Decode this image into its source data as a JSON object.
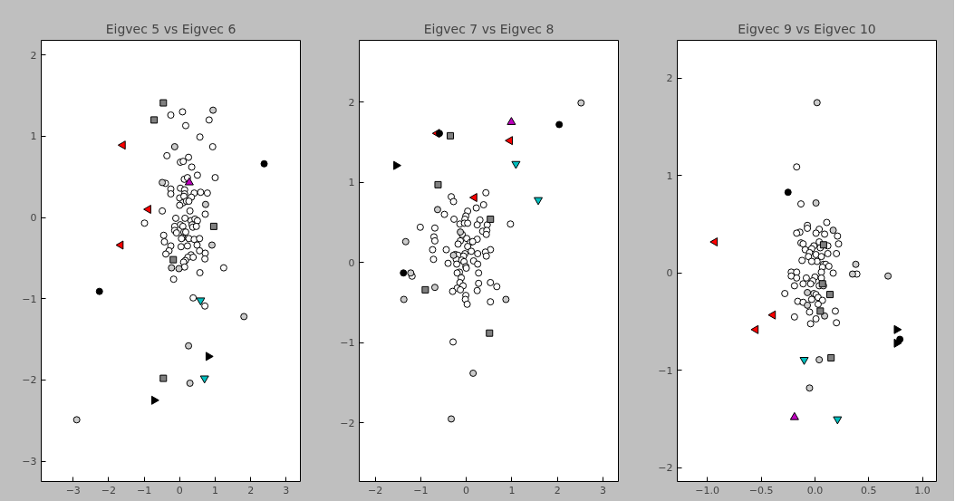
{
  "chart_data": [
    {
      "type": "scatter",
      "title": "Eigvec 5 vs Eigvec 6",
      "xlim": [
        -3.9,
        3.4
      ],
      "ylim": [
        -3.25,
        2.18
      ],
      "xticks": [
        {
          "value": -3,
          "label": "−3"
        },
        {
          "value": -2,
          "label": "−2"
        },
        {
          "value": -1,
          "label": "−1"
        },
        0,
        1,
        2,
        3
      ],
      "yticks": [
        {
          "value": -3,
          "label": "−3"
        },
        {
          "value": -2,
          "label": "−2"
        },
        {
          "value": -1,
          "label": "−1"
        },
        0,
        1,
        2
      ],
      "series": [
        {
          "color": "#ffffff",
          "marker": "circle",
          "x": [
            -0.25,
            0.08,
            0.83,
            0.17,
            0.57,
            0.93,
            -0.36,
            0.25,
            0.02,
            0.1,
            0.34,
            0.5,
            1.0,
            0.13,
            0.22,
            -0.4,
            -0.25,
            0.02,
            0.14,
            -0.25,
            0.14,
            0.41,
            0.59,
            0.78,
            0.0,
            0.12,
            0.33,
            0.09,
            0.19,
            0.26,
            0.0,
            -0.49,
            0.29,
            0.72,
            -0.99,
            -0.11,
            0.15,
            0.32,
            0.43,
            0.5,
            0.02,
            -0.14,
            0.09,
            0.35,
            0.37,
            0.47,
            -0.14,
            -0.09,
            0.12,
            0.17,
            -0.45,
            0.08,
            0.05,
            0.26,
            0.41,
            0.56,
            -0.43,
            -0.25,
            0.04,
            0.22,
            0.49,
            0.72,
            0.56,
            -0.3,
            -0.39,
            0.32,
            0.23,
            0.38,
            0.71,
            0.16,
            0.11,
            1.24,
            0.14,
            0.57,
            -0.17,
            0.38,
            0.71
          ],
          "values": [
            1.26,
            1.3,
            1.2,
            1.13,
            0.99,
            0.87,
            0.76,
            0.74,
            0.68,
            0.69,
            0.62,
            0.52,
            0.49,
            0.47,
            0.49,
            0.42,
            0.35,
            0.36,
            0.34,
            0.29,
            0.29,
            0.3,
            0.31,
            0.3,
            0.24,
            0.26,
            0.25,
            0.18,
            0.2,
            0.2,
            0.15,
            0.08,
            0.08,
            0.04,
            -0.07,
            -0.01,
            -0.01,
            -0.04,
            -0.02,
            -0.04,
            -0.09,
            -0.11,
            -0.11,
            -0.09,
            -0.12,
            -0.11,
            -0.16,
            -0.19,
            -0.18,
            -0.18,
            -0.22,
            -0.25,
            -0.26,
            -0.26,
            -0.27,
            -0.26,
            -0.3,
            -0.35,
            -0.36,
            -0.35,
            -0.34,
            -0.44,
            -0.41,
            -0.41,
            -0.45,
            -0.46,
            -0.49,
            -0.49,
            -0.51,
            -0.53,
            -0.55,
            -0.62,
            -0.61,
            -0.68,
            -0.76,
            -0.99,
            -1.09
          ]
        },
        {
          "color": "#cccccc",
          "marker": "circle",
          "x": [
            0.94,
            -0.14,
            -0.49,
            0.73,
            0.91,
            -0.23,
            -0.02,
            1.81,
            0.25,
            0.29,
            -2.9
          ],
          "values": [
            1.32,
            0.87,
            0.43,
            0.16,
            -0.34,
            -0.62,
            -0.63,
            -1.22,
            -1.58,
            -2.04,
            -2.49
          ]
        },
        {
          "color": "#808080",
          "marker": "square",
          "x": [
            -0.46,
            -0.72,
            0.96,
            -0.18,
            -0.46
          ],
          "values": [
            1.41,
            1.2,
            -0.11,
            -0.52,
            -1.98
          ]
        },
        {
          "color": "#ff0000",
          "marker": "triangle",
          "x": [
            -1.6,
            -0.88,
            -1.66
          ],
          "values": [
            0.89,
            0.1,
            -0.34
          ]
        },
        {
          "color": "#000000",
          "marker": "circle",
          "x": [
            2.38,
            -2.26
          ],
          "values": [
            0.66,
            -0.91
          ]
        },
        {
          "color": "#bf00bf",
          "marker": "triangle",
          "x": [
            0.27
          ],
          "values": [
            0.43
          ]
        },
        {
          "color": "#00bfbf",
          "marker": "triangle",
          "x": [
            0.59,
            0.7
          ],
          "values": [
            -1.02,
            -1.98
          ]
        },
        {
          "color": "#000000",
          "marker": "triangle",
          "x": [
            0.81,
            -0.72
          ],
          "values": [
            -1.71,
            -2.25
          ]
        }
      ]
    },
    {
      "type": "scatter",
      "title": "Eigvec 7 vs Eigvec 8",
      "xlim": [
        -2.35,
        3.34
      ],
      "ylim": [
        -2.73,
        2.77
      ],
      "xticks": [
        {
          "value": -2,
          "label": "−2"
        },
        {
          "value": -1,
          "label": "−1"
        },
        0,
        1,
        2,
        3
      ],
      "yticks": [
        {
          "value": -2,
          "label": "−2"
        },
        {
          "value": -1,
          "label": "−1"
        },
        0,
        1,
        2
      ],
      "series": [
        {
          "color": "#ffffff",
          "marker": "circle",
          "x": [
            -0.33,
            -0.28,
            0.43,
            0.38,
            0.03,
            0.22,
            -0.48,
            -0.27,
            -0.01,
            -0.03,
            0.3,
            -0.14,
            -0.04,
            0.03,
            0.24,
            0.46,
            0.97,
            -1.01,
            -0.69,
            -0.09,
            0.36,
            0.45,
            0.44,
            -0.71,
            -0.69,
            -0.13,
            0.01,
            0.24,
            -0.18,
            0.09,
            0.14,
            0.03,
            -0.74,
            -0.44,
            0.11,
            0.53,
            -0.72,
            0.42,
            0.44,
            0.25,
            -0.24,
            -0.18,
            -0.03,
            -0.06,
            -0.22,
            -0.1,
            -0.05,
            0.16,
            -0.4,
            -0.21,
            0.25,
            -0.01,
            0.0,
            -0.15,
            -0.2,
            0.27,
            -0.11,
            -1.19,
            -0.14,
            0.27,
            0.53,
            -0.07,
            -0.2,
            0.67,
            -0.3,
            -0.13,
            0.24,
            -0.01,
            -0.02,
            0.53,
            0.02,
            -0.29
          ],
          "values": [
            0.82,
            0.76,
            0.87,
            0.72,
            0.64,
            0.68,
            0.6,
            0.54,
            0.58,
            0.54,
            0.53,
            0.48,
            0.49,
            0.49,
            0.47,
            0.47,
            0.48,
            0.44,
            0.43,
            0.35,
            0.39,
            0.4,
            0.35,
            0.32,
            0.27,
            0.27,
            0.3,
            0.29,
            0.23,
            0.25,
            0.26,
            0.2,
            0.16,
            0.16,
            0.14,
            0.16,
            0.04,
            0.13,
            0.08,
            0.11,
            0.1,
            0.09,
            0.11,
            0.08,
            0.04,
            0.03,
            0.01,
            0.02,
            -0.01,
            -0.02,
            -0.02,
            -0.05,
            -0.07,
            -0.12,
            -0.13,
            -0.13,
            -0.19,
            -0.17,
            -0.25,
            -0.26,
            -0.25,
            -0.29,
            -0.32,
            -0.3,
            -0.36,
            -0.34,
            -0.35,
            -0.41,
            -0.46,
            -0.49,
            -0.52,
            -0.99
          ]
        },
        {
          "color": "#cccccc",
          "marker": "circle",
          "x": [
            2.52,
            -0.63,
            -0.13,
            -1.33,
            -0.28,
            -1.22,
            -0.69,
            -1.37,
            0.87,
            0.15,
            -0.33
          ],
          "values": [
            1.99,
            0.66,
            0.38,
            0.26,
            0.09,
            -0.13,
            -0.31,
            -0.46,
            -0.46,
            -1.38,
            -1.95
          ]
        },
        {
          "color": "#808080",
          "marker": "square",
          "x": [
            -0.35,
            -0.62,
            0.53,
            -0.9,
            0.51
          ],
          "values": [
            1.58,
            0.97,
            0.54,
            -0.34,
            -0.88
          ]
        },
        {
          "color": "#ff0000",
          "marker": "triangle",
          "x": [
            -0.64,
            0.96,
            0.18
          ],
          "values": [
            1.61,
            1.52,
            0.81
          ]
        },
        {
          "color": "#000000",
          "marker": "circle",
          "x": [
            -0.59,
            2.04,
            -1.38
          ],
          "values": [
            1.61,
            1.72,
            -0.13
          ]
        },
        {
          "color": "#bf00bf",
          "marker": "triangle",
          "x": [
            0.99
          ],
          "values": [
            1.75
          ]
        },
        {
          "color": "#00bfbf",
          "marker": "triangle",
          "x": [
            1.09,
            1.58
          ],
          "values": [
            1.23,
            0.78
          ]
        },
        {
          "color": "#000000",
          "marker": "triangle",
          "x": [
            -1.54
          ],
          "values": [
            1.21
          ]
        }
      ]
    },
    {
      "type": "scatter",
      "title": "Eigvec 9 vs Eigvec 10",
      "xlim": [
        -1.28,
        1.13
      ],
      "ylim": [
        -2.14,
        2.39
      ],
      "xticks": [
        {
          "value": -1,
          "label": "−1.0"
        },
        {
          "value": -0.5,
          "label": "−0.5"
        },
        {
          "value": 0,
          "label": "0.0"
        },
        {
          "value": 0.5,
          "label": "0.5"
        },
        {
          "value": 1,
          "label": "1.0"
        }
      ],
      "yticks": [
        {
          "value": -2,
          "label": "−2"
        },
        {
          "value": -1,
          "label": "−1"
        },
        0,
        1,
        2
      ],
      "series": [
        {
          "color": "#ffffff",
          "marker": "circle",
          "x": [
            -0.17,
            -0.13,
            0.11,
            -0.07,
            -0.07,
            0.04,
            -0.14,
            -0.17,
            0.01,
            0.09,
            0.21,
            -0.13,
            -0.11,
            0.04,
            0.12,
            0.22,
            -0.01,
            0.05,
            -0.09,
            -0.03,
            -0.05,
            0.12,
            0.2,
            0.01,
            -0.06,
            0.06,
            0.02,
            -0.12,
            -0.03,
            0.08,
            0.1,
            0.13,
            0.07,
            0.17,
            0.39,
            -0.22,
            -0.17,
            0.06,
            -0.22,
            -0.17,
            0.0,
            -0.08,
            0.06,
            -0.02,
            -0.19,
            -0.11,
            -0.04,
            0.04,
            0.08,
            -0.28,
            -0.01,
            0.01,
            0.03,
            -0.03,
            -0.16,
            -0.11,
            0.07,
            0.03,
            0.19,
            -0.05,
            -0.19,
            0.01,
            -0.04,
            0.2
          ],
          "values": [
            1.09,
            0.71,
            0.52,
            0.49,
            0.46,
            0.45,
            0.42,
            0.41,
            0.41,
            0.4,
            0.38,
            0.31,
            0.3,
            0.32,
            0.28,
            0.3,
            0.28,
            0.26,
            0.24,
            0.25,
            0.21,
            0.2,
            0.2,
            0.19,
            0.17,
            0.17,
            0.12,
            0.13,
            0.12,
            0.09,
            0.09,
            0.07,
            0.06,
            0.0,
            -0.01,
            0.01,
            0.01,
            0.01,
            -0.03,
            -0.05,
            -0.04,
            -0.05,
            -0.05,
            -0.08,
            -0.13,
            -0.11,
            -0.11,
            -0.13,
            -0.13,
            -0.21,
            -0.21,
            -0.22,
            -0.25,
            -0.27,
            -0.29,
            -0.3,
            -0.28,
            -0.32,
            -0.39,
            -0.4,
            -0.45,
            -0.47,
            -0.52,
            -0.51
          ]
        },
        {
          "color": "#cccccc",
          "marker": "circle",
          "x": [
            0.02,
            0.01,
            0.17,
            0.38,
            0.35,
            0.68,
            -0.07,
            -0.07,
            0.09,
            0.04,
            -0.05
          ],
          "values": [
            1.75,
            0.72,
            0.44,
            0.09,
            -0.01,
            -0.03,
            -0.2,
            -0.33,
            -0.44,
            -0.89,
            -1.18
          ]
        },
        {
          "color": "#808080",
          "marker": "square",
          "x": [
            0.08,
            0.07,
            0.14,
            0.05,
            0.15
          ],
          "values": [
            0.29,
            -0.11,
            -0.22,
            -0.39,
            -0.87
          ]
        },
        {
          "color": "#ff0000",
          "marker": "triangle",
          "x": [
            -0.93,
            -0.39,
            -0.55
          ],
          "values": [
            0.32,
            -0.43,
            -0.58
          ]
        },
        {
          "color": "#000000",
          "marker": "circle",
          "x": [
            -0.25,
            0.79
          ],
          "values": [
            0.83,
            -0.68
          ]
        },
        {
          "color": "#bf00bf",
          "marker": "triangle",
          "x": [
            -0.19
          ],
          "values": [
            -1.48
          ]
        },
        {
          "color": "#00bfbf",
          "marker": "triangle",
          "x": [
            -0.1,
            0.21
          ],
          "values": [
            -0.89,
            -1.5
          ]
        },
        {
          "color": "#000000",
          "marker": "triangle",
          "x": [
            0.76,
            0.76
          ],
          "values": [
            -0.58,
            -0.72
          ]
        }
      ]
    }
  ]
}
